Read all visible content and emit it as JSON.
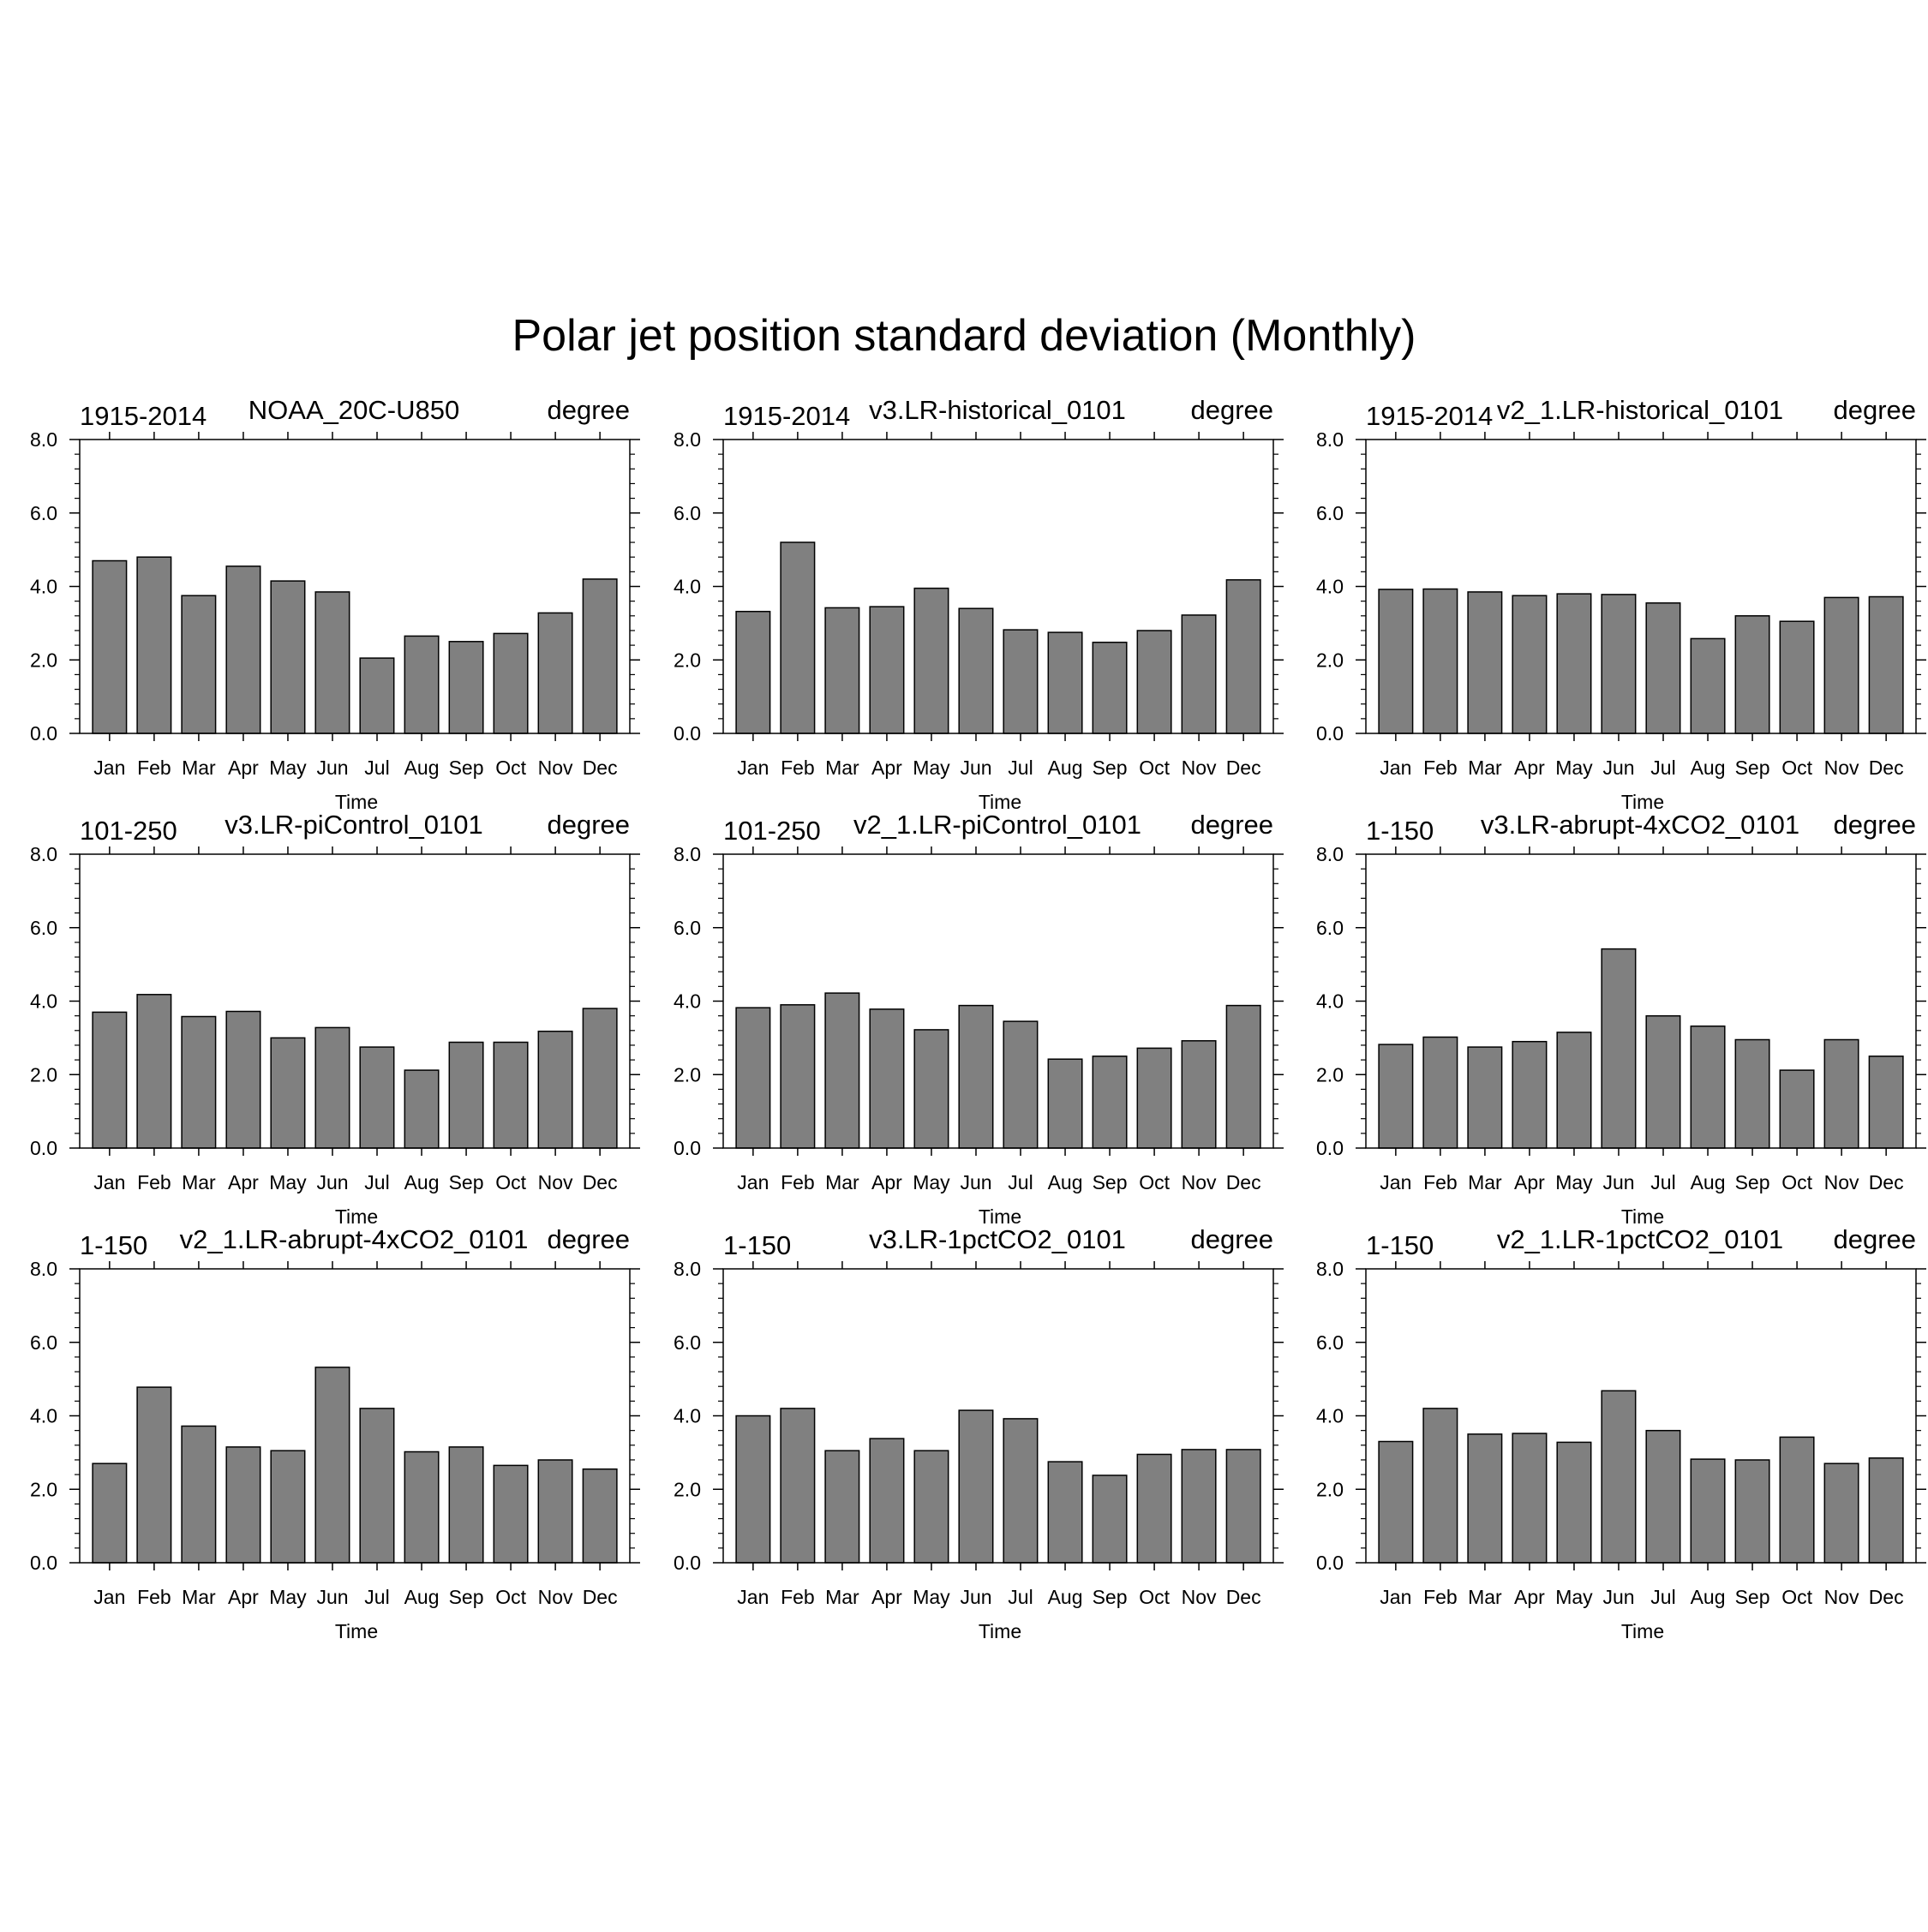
{
  "title": "Polar jet position standard deviation (Monthly)",
  "colors": {
    "bar_fill": "#808080",
    "bar_stroke": "#000000",
    "axis": "#000000",
    "background": "#ffffff"
  },
  "chart_data": [
    {
      "type": "bar",
      "left_label": "1915-2014",
      "title": "NOAA_20C-U850",
      "right_label": "degree",
      "categories": [
        "Jan",
        "Feb",
        "Mar",
        "Apr",
        "May",
        "Jun",
        "Jul",
        "Aug",
        "Sep",
        "Oct",
        "Nov",
        "Dec"
      ],
      "values": [
        4.7,
        4.8,
        3.75,
        4.55,
        4.15,
        3.85,
        2.05,
        2.65,
        2.5,
        2.72,
        3.28,
        4.2
      ],
      "xlabel": "Time",
      "ylabel": "",
      "ylim": [
        0,
        8
      ],
      "yticks": [
        "0.0",
        "2.0",
        "4.0",
        "6.0",
        "8.0"
      ],
      "grid": false
    },
    {
      "type": "bar",
      "left_label": "1915-2014",
      "title": "v3.LR-historical_0101",
      "right_label": "degree",
      "categories": [
        "Jan",
        "Feb",
        "Mar",
        "Apr",
        "May",
        "Jun",
        "Jul",
        "Aug",
        "Sep",
        "Oct",
        "Nov",
        "Dec"
      ],
      "values": [
        3.32,
        5.2,
        3.42,
        3.45,
        3.95,
        3.4,
        2.82,
        2.75,
        2.48,
        2.8,
        3.22,
        4.18
      ],
      "xlabel": "Time",
      "ylabel": "",
      "ylim": [
        0,
        8
      ],
      "yticks": [
        "0.0",
        "2.0",
        "4.0",
        "6.0",
        "8.0"
      ],
      "grid": false
    },
    {
      "type": "bar",
      "left_label": "1915-2014",
      "title": "v2_1.LR-historical_0101",
      "right_label": "degree",
      "categories": [
        "Jan",
        "Feb",
        "Mar",
        "Apr",
        "May",
        "Jun",
        "Jul",
        "Aug",
        "Sep",
        "Oct",
        "Nov",
        "Dec"
      ],
      "values": [
        3.92,
        3.93,
        3.85,
        3.75,
        3.8,
        3.78,
        3.55,
        2.58,
        3.2,
        3.05,
        3.7,
        3.72
      ],
      "xlabel": "Time",
      "ylabel": "",
      "ylim": [
        0,
        8
      ],
      "yticks": [
        "0.0",
        "2.0",
        "4.0",
        "6.0",
        "8.0"
      ],
      "grid": false
    },
    {
      "type": "bar",
      "left_label": "101-250",
      "title": "v3.LR-piControl_0101",
      "right_label": "degree",
      "categories": [
        "Jan",
        "Feb",
        "Mar",
        "Apr",
        "May",
        "Jun",
        "Jul",
        "Aug",
        "Sep",
        "Oct",
        "Nov",
        "Dec"
      ],
      "values": [
        3.7,
        4.18,
        3.58,
        3.72,
        3.0,
        3.28,
        2.75,
        2.12,
        2.88,
        2.88,
        3.18,
        3.8
      ],
      "xlabel": "Time",
      "ylabel": "",
      "ylim": [
        0,
        8
      ],
      "yticks": [
        "0.0",
        "2.0",
        "4.0",
        "6.0",
        "8.0"
      ],
      "grid": false
    },
    {
      "type": "bar",
      "left_label": "101-250",
      "title": "v2_1.LR-piControl_0101",
      "right_label": "degree",
      "categories": [
        "Jan",
        "Feb",
        "Mar",
        "Apr",
        "May",
        "Jun",
        "Jul",
        "Aug",
        "Sep",
        "Oct",
        "Nov",
        "Dec"
      ],
      "values": [
        3.82,
        3.9,
        4.22,
        3.78,
        3.22,
        3.88,
        3.45,
        2.42,
        2.5,
        2.72,
        2.92,
        3.88
      ],
      "xlabel": "Time",
      "ylabel": "",
      "ylim": [
        0,
        8
      ],
      "yticks": [
        "0.0",
        "2.0",
        "4.0",
        "6.0",
        "8.0"
      ],
      "grid": false
    },
    {
      "type": "bar",
      "left_label": "1-150",
      "title": "v3.LR-abrupt-4xCO2_0101",
      "right_label": "degree",
      "categories": [
        "Jan",
        "Feb",
        "Mar",
        "Apr",
        "May",
        "Jun",
        "Jul",
        "Aug",
        "Sep",
        "Oct",
        "Nov",
        "Dec"
      ],
      "values": [
        2.82,
        3.02,
        2.75,
        2.9,
        3.15,
        5.42,
        3.6,
        3.32,
        2.95,
        2.12,
        2.95,
        2.5
      ],
      "xlabel": "Time",
      "ylabel": "",
      "ylim": [
        0,
        8
      ],
      "yticks": [
        "0.0",
        "2.0",
        "4.0",
        "6.0",
        "8.0"
      ],
      "grid": false
    },
    {
      "type": "bar",
      "left_label": "1-150",
      "title": "v2_1.LR-abrupt-4xCO2_0101",
      "right_label": "degree",
      "categories": [
        "Jan",
        "Feb",
        "Mar",
        "Apr",
        "May",
        "Jun",
        "Jul",
        "Aug",
        "Sep",
        "Oct",
        "Nov",
        "Dec"
      ],
      "values": [
        2.7,
        4.78,
        3.72,
        3.15,
        3.05,
        5.32,
        4.2,
        3.02,
        3.15,
        2.65,
        2.8,
        2.55
      ],
      "xlabel": "Time",
      "ylabel": "",
      "ylim": [
        0,
        8
      ],
      "yticks": [
        "0.0",
        "2.0",
        "4.0",
        "6.0",
        "8.0"
      ],
      "grid": false
    },
    {
      "type": "bar",
      "left_label": "1-150",
      "title": "v3.LR-1pctCO2_0101",
      "right_label": "degree",
      "categories": [
        "Jan",
        "Feb",
        "Mar",
        "Apr",
        "May",
        "Jun",
        "Jul",
        "Aug",
        "Sep",
        "Oct",
        "Nov",
        "Dec"
      ],
      "values": [
        4.0,
        4.2,
        3.05,
        3.38,
        3.05,
        4.15,
        3.92,
        2.75,
        2.38,
        2.95,
        3.08,
        3.08
      ],
      "xlabel": "Time",
      "ylabel": "",
      "ylim": [
        0,
        8
      ],
      "yticks": [
        "0.0",
        "2.0",
        "4.0",
        "6.0",
        "8.0"
      ],
      "grid": false
    },
    {
      "type": "bar",
      "left_label": "1-150",
      "title": "v2_1.LR-1pctCO2_0101",
      "right_label": "degree",
      "categories": [
        "Jan",
        "Feb",
        "Mar",
        "Apr",
        "May",
        "Jun",
        "Jul",
        "Aug",
        "Sep",
        "Oct",
        "Nov",
        "Dec"
      ],
      "values": [
        3.3,
        4.2,
        3.5,
        3.52,
        3.28,
        4.68,
        3.6,
        2.82,
        2.8,
        3.42,
        2.7,
        2.85
      ],
      "xlabel": "Time",
      "ylabel": "",
      "ylim": [
        0,
        8
      ],
      "yticks": [
        "0.0",
        "2.0",
        "4.0",
        "6.0",
        "8.0"
      ],
      "grid": false
    }
  ]
}
